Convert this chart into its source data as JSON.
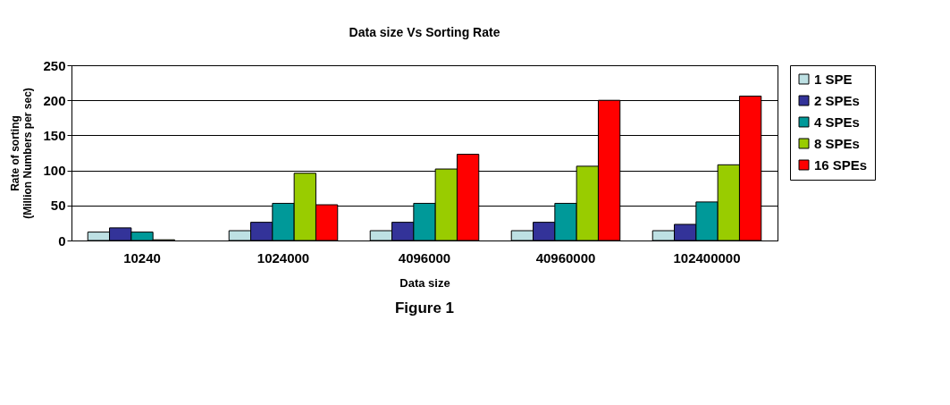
{
  "chart_data": {
    "type": "bar",
    "title": "Data size Vs Sorting Rate",
    "xlabel": "Data size",
    "ylabel": "Rate of sorting\n(Million Numbers per sec)",
    "annotations": [
      "Figure 1"
    ],
    "categories": [
      "10240",
      "1024000",
      "4096000",
      "40960000",
      "102400000"
    ],
    "series": [
      {
        "name": "1 SPE",
        "color": "#bde0e3",
        "values": [
          12,
          14,
          14,
          14,
          14
        ]
      },
      {
        "name": "2 SPEs",
        "color": "#333399",
        "values": [
          18,
          26,
          26,
          26,
          23
        ]
      },
      {
        "name": "4 SPEs",
        "color": "#009999",
        "values": [
          12,
          53,
          53,
          53,
          55
        ]
      },
      {
        "name": "8 SPEs",
        "color": "#99cc00",
        "values": [
          1,
          96,
          102,
          106,
          108
        ]
      },
      {
        "name": "16 SPEs",
        "color": "#ff0000",
        "values": [
          null,
          51,
          123,
          200,
          206
        ]
      }
    ],
    "ylim": [
      0,
      250
    ],
    "yticks": [
      0,
      50,
      100,
      150,
      200,
      250
    ],
    "grid": "y",
    "legend": "right"
  }
}
